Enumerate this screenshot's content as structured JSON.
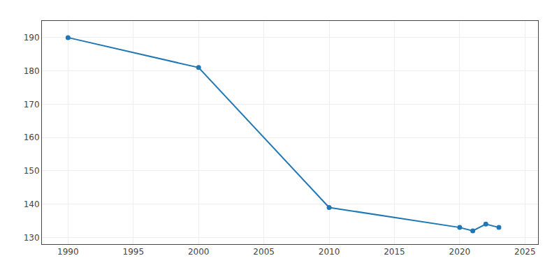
{
  "chart_data": {
    "type": "line",
    "x": [
      1990,
      2000,
      2010,
      2020,
      2021,
      2022,
      2023
    ],
    "values": [
      190,
      181,
      139,
      133,
      132,
      134,
      133
    ],
    "marker": "circle",
    "xlim": [
      1988,
      2026
    ],
    "ylim": [
      128,
      195
    ],
    "xticks": [
      1990,
      1995,
      2000,
      2005,
      2010,
      2015,
      2020,
      2025
    ],
    "yticks": [
      130,
      140,
      150,
      160,
      170,
      180,
      190
    ],
    "grid": true
  }
}
